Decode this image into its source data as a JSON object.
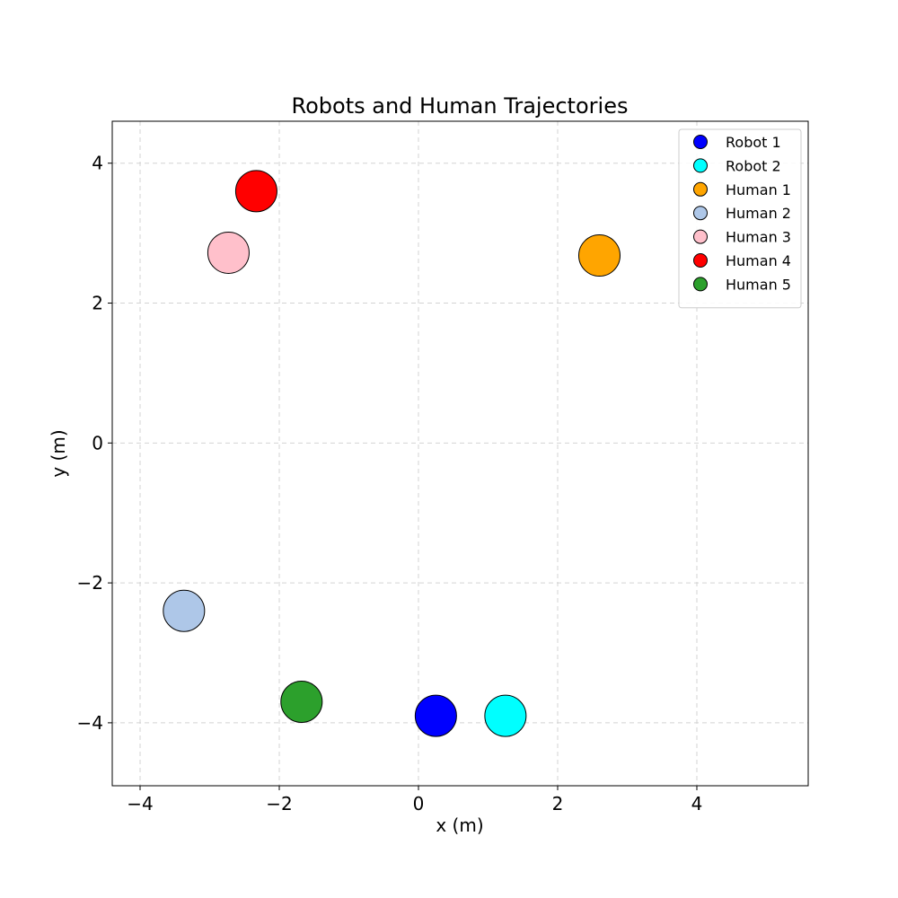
{
  "chart_data": {
    "type": "scatter",
    "title": "Robots and Human Trajectories",
    "xlabel": "x (m)",
    "ylabel": "y (m)",
    "xlim": [
      -4.4,
      5.6
    ],
    "ylim": [
      -4.9,
      4.6
    ],
    "xticks": [
      {
        "value": -4,
        "label": "−4"
      },
      {
        "value": -2,
        "label": "−2"
      },
      {
        "value": 0,
        "label": "0"
      },
      {
        "value": 2,
        "label": "2"
      },
      {
        "value": 4,
        "label": "4"
      }
    ],
    "yticks": [
      {
        "value": 4,
        "label": "4"
      },
      {
        "value": 2,
        "label": "2"
      },
      {
        "value": 0,
        "label": "0"
      },
      {
        "value": -2,
        "label": "−2"
      },
      {
        "value": -4,
        "label": "−4"
      }
    ],
    "grid": true,
    "legend_placement": "top-right",
    "series": [
      {
        "name": "Robot 1",
        "color": "#0000ff",
        "x": 0.25,
        "y": -3.9
      },
      {
        "name": "Robot 2",
        "color": "#00ffff",
        "x": 1.25,
        "y": -3.9
      },
      {
        "name": "Human 1",
        "color": "#ffa500",
        "x": 2.6,
        "y": 2.68
      },
      {
        "name": "Human 2",
        "color": "#aec7e8",
        "x": -3.37,
        "y": -2.4
      },
      {
        "name": "Human 3",
        "color": "#ffc0cb",
        "x": -2.73,
        "y": 2.72
      },
      {
        "name": "Human 4",
        "color": "#ff0000",
        "x": -2.33,
        "y": 3.6
      },
      {
        "name": "Human 5",
        "color": "#2ca02c",
        "x": -1.68,
        "y": -3.7
      }
    ]
  }
}
